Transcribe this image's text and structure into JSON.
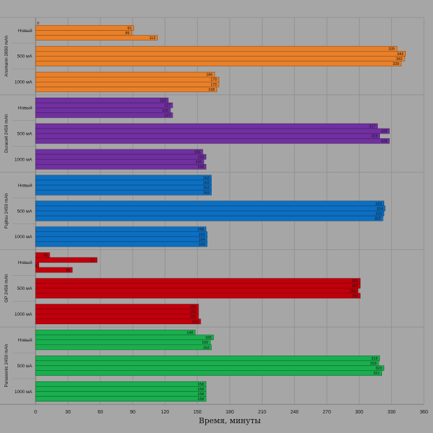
{
  "chart_data": {
    "type": "bar",
    "orientation": "horizontal",
    "xlabel": "Время, минуты",
    "xlim": [
      0,
      360
    ],
    "xticks": [
      0,
      30,
      60,
      90,
      120,
      150,
      180,
      210,
      240,
      270,
      300,
      330,
      360
    ],
    "grid": true,
    "groups": [
      {
        "name": "Ansmann 2850 mAh",
        "color": "#e8802a",
        "subcategories": [
          {
            "name": "Новый",
            "values": [
              0,
              91,
              89,
              113
            ]
          },
          {
            "name": "500 мА",
            "values": [
              335,
              343,
              342,
              339
            ]
          },
          {
            "name": "1000 мА",
            "values": [
              166,
              170,
              170,
              168
            ]
          }
        ]
      },
      {
        "name": "Duracell 2450 mAh",
        "color": "#7030a0",
        "subcategories": [
          {
            "name": "Новый",
            "values": [
              123,
              127,
              125,
              127
            ]
          },
          {
            "name": "500 мА",
            "values": [
              317,
              328,
              319,
              328
            ]
          },
          {
            "name": "1000 мА",
            "values": [
              155,
              158,
              156,
              158
            ]
          }
        ]
      },
      {
        "name": "Fujitsu 2450 mAh",
        "color": "#0d6fc1",
        "subcategories": [
          {
            "name": "Новый",
            "values": [
              163,
              163,
              163,
              163
            ]
          },
          {
            "name": "500 мА",
            "values": [
              323,
              324,
              323,
              322
            ]
          },
          {
            "name": "1000 мА",
            "values": [
              158,
              159,
              159,
              159
            ]
          }
        ]
      },
      {
        "name": "GP 2450 mAh",
        "color": "#c0000c",
        "subcategories": [
          {
            "name": "Новый",
            "values": [
              13,
              57,
              3,
              34
            ]
          },
          {
            "name": "500 мА",
            "values": [
              301,
              301,
              299,
              301
            ]
          },
          {
            "name": "1000 мА",
            "values": [
              151,
              151,
              151,
              153
            ]
          }
        ]
      },
      {
        "name": "Panasonic 2450 mAh",
        "color": "#1aae4e",
        "subcategories": [
          {
            "name": "Новый",
            "values": [
              148,
              165,
              162,
              163
            ]
          },
          {
            "name": "500 мА",
            "values": [
              319,
              318,
              323,
              321
            ]
          },
          {
            "name": "1000 мА",
            "values": [
              158,
              158,
              158,
              158
            ]
          }
        ]
      }
    ]
  }
}
